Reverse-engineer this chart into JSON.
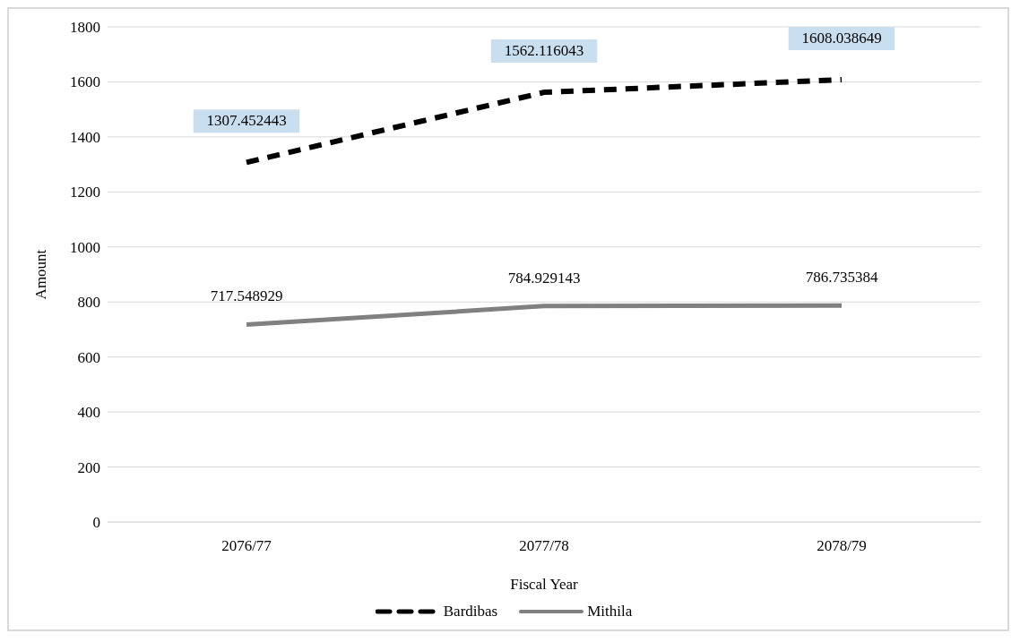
{
  "chart_data": {
    "type": "line",
    "xlabel": "Fiscal Year",
    "ylabel": "Amount",
    "categories": [
      "2076/77",
      "2077/78",
      "2078/79"
    ],
    "series": [
      {
        "name": "Bardibas",
        "color": "#000000",
        "line_style": "dashed",
        "values": [
          1307.452443,
          1562.116043,
          1608.038649
        ]
      },
      {
        "name": "Mithila",
        "color": "#808080",
        "line_style": "solid",
        "values": [
          717.548929,
          784.929143,
          786.735384
        ]
      }
    ],
    "ylim": [
      0,
      1800
    ],
    "yticks": [
      0,
      200,
      400,
      600,
      800,
      1000,
      1200,
      1400,
      1600,
      1800
    ],
    "grid": "y",
    "legend": "bottom",
    "marker": "none",
    "data_labels": true
  }
}
